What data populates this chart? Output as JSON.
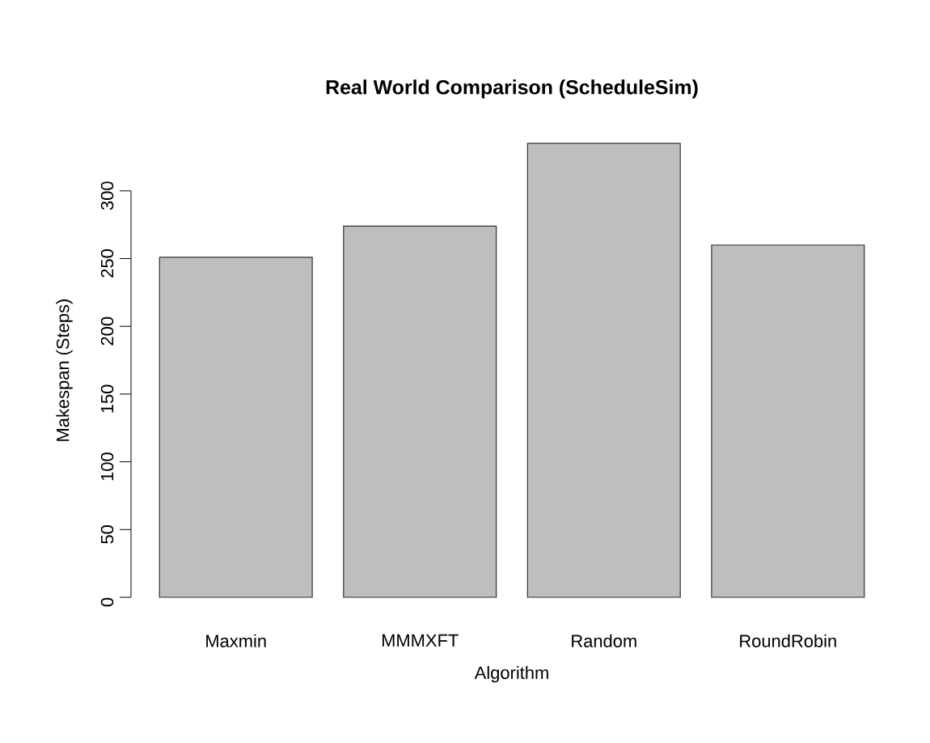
{
  "chart_data": {
    "type": "bar",
    "title": "Real World Comparison (ScheduleSim)",
    "xlabel": "Algorithm",
    "ylabel": "Makespan (Steps)",
    "categories": [
      "Maxmin",
      "MMMXFT",
      "Random",
      "RoundRobin"
    ],
    "values": [
      251,
      274,
      335,
      260
    ],
    "color": "#bebebe",
    "ylim": [
      0,
      335
    ],
    "yticks": [
      0,
      50,
      100,
      150,
      200,
      250,
      300
    ]
  }
}
